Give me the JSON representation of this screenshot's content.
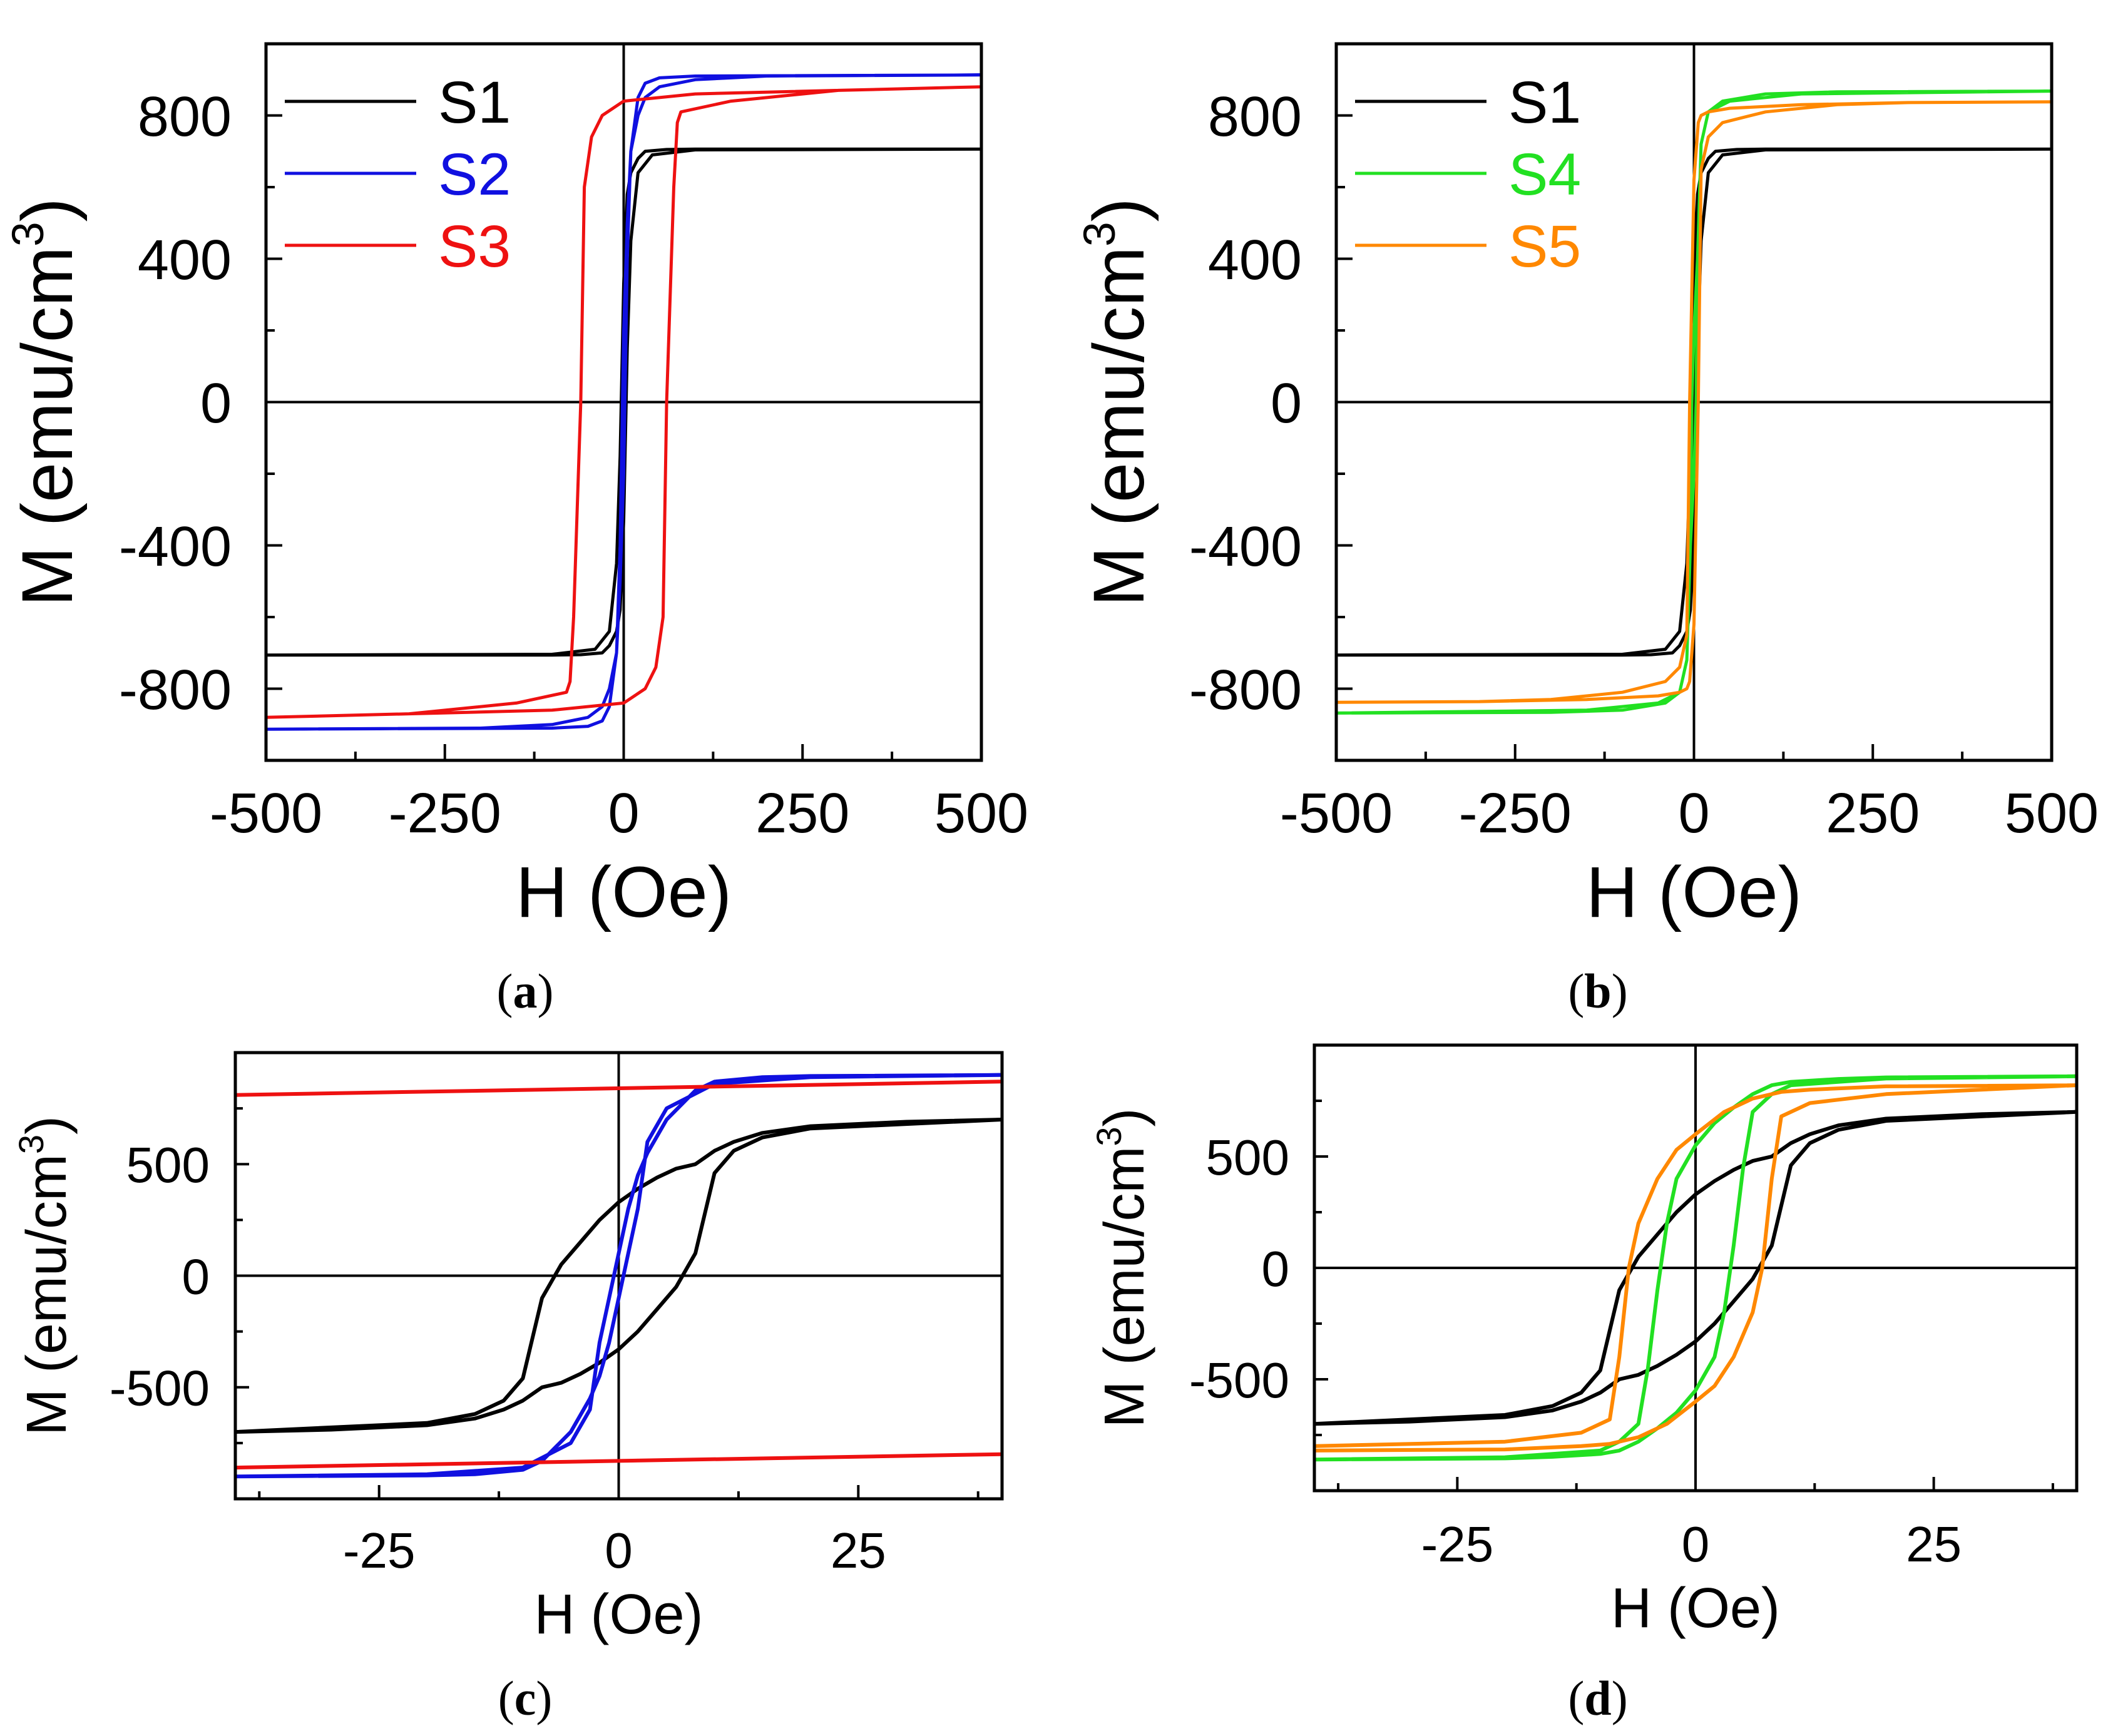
{
  "chart_data": [
    {
      "panel": "a",
      "type": "line",
      "caption": "(a)",
      "xlabel": "H (Oe)",
      "ylabel": "M (emu/cm",
      "ylabel_sup": "3",
      "ylabel_close": ")",
      "xlim": [
        -500,
        500
      ],
      "ylim": [
        -1000,
        1000
      ],
      "xticks": [
        -500,
        -250,
        0,
        250,
        500
      ],
      "xtick_labels": [
        "-500",
        "-250",
        "0",
        "250",
        "500"
      ],
      "yticks": [
        -800,
        -400,
        0,
        400,
        800
      ],
      "ytick_labels": [
        "-800",
        "-400",
        "0",
        "400",
        "800"
      ],
      "legend": [
        {
          "name": "S1",
          "color": "#000000"
        },
        {
          "name": "S2",
          "color": "#1010e0"
        },
        {
          "name": "S3",
          "color": "#ee1111"
        }
      ],
      "series": [
        {
          "name": "S1",
          "color": "#000000",
          "x": [
            -500,
            -100,
            -40,
            -20,
            -10,
            -5,
            0,
            5,
            10,
            20,
            30,
            60,
            100,
            500,
            100,
            40,
            20,
            10,
            5,
            0,
            -5,
            -10,
            -20,
            -30,
            -60,
            -100,
            -500
          ],
          "y": [
            -706,
            -704,
            -690,
            -640,
            -450,
            -150,
            330,
            580,
            640,
            680,
            700,
            705,
            706,
            706,
            704,
            690,
            640,
            450,
            150,
            -330,
            -580,
            -640,
            -680,
            -700,
            -705,
            -706,
            -706
          ]
        },
        {
          "name": "S2",
          "color": "#1010e0",
          "x": [
            -500,
            -200,
            -100,
            -50,
            -30,
            -20,
            -10,
            -5,
            0,
            5,
            10,
            20,
            30,
            50,
            100,
            500,
            200,
            100,
            50,
            30,
            20,
            10,
            5,
            0,
            -5,
            -10,
            -20,
            -30,
            -50,
            -100,
            -500
          ],
          "y": [
            -913,
            -910,
            -900,
            -880,
            -850,
            -800,
            -700,
            -500,
            -200,
            400,
            700,
            850,
            890,
            905,
            910,
            913,
            910,
            900,
            880,
            850,
            800,
            700,
            500,
            200,
            -400,
            -700,
            -850,
            -890,
            -905,
            -910,
            -913
          ]
        },
        {
          "name": "S3",
          "color": "#ee1111",
          "x": [
            -500,
            -300,
            -100,
            0,
            30,
            45,
            55,
            60,
            70,
            75,
            80,
            150,
            300,
            500,
            300,
            100,
            0,
            -30,
            -45,
            -55,
            -60,
            -70,
            -75,
            -80,
            -150,
            -300,
            -500
          ],
          "y": [
            -880,
            -870,
            -860,
            -840,
            -800,
            -740,
            -600,
            0,
            600,
            780,
            810,
            840,
            870,
            880,
            870,
            860,
            840,
            800,
            740,
            600,
            0,
            -600,
            -780,
            -810,
            -840,
            -870,
            -880
          ]
        }
      ]
    },
    {
      "panel": "b",
      "type": "line",
      "caption": "(b)",
      "xlabel": "H (Oe)",
      "ylabel": "M (emu/cm",
      "ylabel_sup": "3",
      "ylabel_close": ")",
      "xlim": [
        -500,
        500
      ],
      "ylim": [
        -1000,
        1000
      ],
      "xticks": [
        -500,
        -250,
        0,
        250,
        500
      ],
      "xtick_labels": [
        "-500",
        "-250",
        "0",
        "250",
        "500"
      ],
      "yticks": [
        -800,
        -400,
        0,
        400,
        800
      ],
      "ytick_labels": [
        "-800",
        "-400",
        "0",
        "400",
        "800"
      ],
      "legend": [
        {
          "name": "S1",
          "color": "#000000"
        },
        {
          "name": "S4",
          "color": "#22e022"
        },
        {
          "name": "S5",
          "color": "#ff8800"
        }
      ],
      "series": [
        {
          "name": "S1",
          "color": "#000000",
          "x": [
            -500,
            -100,
            -40,
            -20,
            -10,
            -5,
            0,
            5,
            10,
            20,
            30,
            60,
            100,
            500,
            100,
            40,
            20,
            10,
            5,
            0,
            -5,
            -10,
            -20,
            -30,
            -60,
            -100,
            -500
          ],
          "y": [
            -706,
            -704,
            -690,
            -640,
            -450,
            -150,
            330,
            580,
            640,
            680,
            700,
            705,
            706,
            706,
            704,
            690,
            640,
            450,
            150,
            -330,
            -580,
            -640,
            -680,
            -700,
            -705,
            -706,
            -706
          ]
        },
        {
          "name": "S4",
          "color": "#22e022",
          "x": [
            -500,
            -200,
            -100,
            -40,
            -20,
            -10,
            -5,
            0,
            3,
            5,
            10,
            20,
            50,
            150,
            500,
            200,
            100,
            40,
            20,
            10,
            5,
            0,
            -3,
            -5,
            -10,
            -20,
            -50,
            -150,
            -500
          ],
          "y": [
            -868,
            -866,
            -860,
            -840,
            -810,
            -720,
            -400,
            -200,
            0,
            400,
            720,
            810,
            840,
            860,
            868,
            866,
            860,
            840,
            810,
            720,
            400,
            200,
            0,
            -400,
            -720,
            -810,
            -840,
            -860,
            -868
          ]
        },
        {
          "name": "S5",
          "color": "#ff8800",
          "x": [
            -500,
            -300,
            -200,
            -100,
            -40,
            -20,
            -10,
            -6,
            0,
            6,
            10,
            20,
            50,
            150,
            300,
            500,
            300,
            200,
            100,
            40,
            20,
            10,
            6,
            0,
            -6,
            -10,
            -20,
            -50,
            -150,
            -300,
            -500
          ],
          "y": [
            -838,
            -836,
            -830,
            -810,
            -780,
            -740,
            -650,
            0,
            620,
            780,
            800,
            810,
            820,
            830,
            836,
            838,
            836,
            830,
            810,
            780,
            740,
            650,
            0,
            -620,
            -780,
            -800,
            -810,
            -820,
            -830,
            -836,
            -838
          ]
        }
      ]
    },
    {
      "panel": "c",
      "type": "line",
      "caption": "(c)",
      "xlabel": "H (Oe)",
      "ylabel": "M (emu/cm",
      "ylabel_sup": "3",
      "ylabel_close": ")",
      "xlim": [
        -40,
        40
      ],
      "ylim": [
        -1000,
        1000
      ],
      "xticks": [
        -25,
        0,
        25
      ],
      "xtick_labels": [
        "-25",
        "0",
        "25"
      ],
      "yticks": [
        -500,
        0,
        500
      ],
      "ytick_labels": [
        "-500",
        "0",
        "500"
      ],
      "series": [
        {
          "name": "S1",
          "color": "#000000",
          "x": [
            -40,
            -20,
            -15,
            -12,
            -10,
            -8,
            -6,
            -4,
            -2,
            0,
            2,
            4,
            6,
            8,
            10,
            12,
            15,
            20,
            30,
            40,
            20,
            15,
            12,
            10,
            8,
            6,
            4,
            2,
            0,
            -2,
            -4,
            -6,
            -8,
            -10,
            -12,
            -15,
            -20,
            -30,
            -40
          ],
          "y": [
            -700,
            -660,
            -620,
            -560,
            -460,
            -100,
            50,
            150,
            250,
            330,
            390,
            440,
            480,
            500,
            560,
            600,
            640,
            670,
            690,
            700,
            660,
            620,
            560,
            460,
            100,
            -50,
            -150,
            -250,
            -330,
            -390,
            -440,
            -480,
            -500,
            -560,
            -600,
            -640,
            -670,
            -690,
            -700
          ]
        },
        {
          "name": "S2",
          "color": "#1010e0",
          "x": [
            -40,
            -20,
            -10,
            -5,
            -3,
            -2,
            -1,
            0,
            1,
            2,
            3,
            5,
            8,
            10,
            15,
            20,
            40,
            20,
            10,
            5,
            3,
            2,
            1,
            0,
            -1,
            -2,
            -3,
            -5,
            -8,
            -10,
            -15,
            -20,
            -40
          ],
          "y": [
            -900,
            -890,
            -860,
            -750,
            -600,
            -300,
            -100,
            100,
            300,
            450,
            550,
            700,
            830,
            870,
            890,
            895,
            900,
            890,
            860,
            750,
            600,
            300,
            100,
            -100,
            -300,
            -450,
            -550,
            -700,
            -830,
            -870,
            -890,
            -895,
            -900
          ]
        },
        {
          "name": "S3",
          "color": "#ee1111",
          "x": [
            -40,
            40
          ],
          "y": [
            810,
            870
          ]
        },
        {
          "name": "S3",
          "color": "#ee1111",
          "x": [
            -40,
            40
          ],
          "y": [
            -860,
            -800
          ]
        }
      ]
    },
    {
      "panel": "d",
      "type": "line",
      "caption": "(d)",
      "xlabel": "H (Oe)",
      "ylabel": "M (emu/cm",
      "ylabel_sup": "3",
      "ylabel_close": ")",
      "xlim": [
        -40,
        40
      ],
      "ylim": [
        -1000,
        1000
      ],
      "xticks": [
        -25,
        0,
        25
      ],
      "xtick_labels": [
        "-25",
        "0",
        "25"
      ],
      "yticks": [
        -500,
        0,
        500
      ],
      "ytick_labels": [
        "-500",
        "0",
        "500"
      ],
      "series": [
        {
          "name": "S1",
          "color": "#000000",
          "x": [
            -40,
            -20,
            -15,
            -12,
            -10,
            -8,
            -6,
            -4,
            -2,
            0,
            2,
            4,
            6,
            8,
            10,
            12,
            15,
            20,
            30,
            40,
            20,
            15,
            12,
            10,
            8,
            6,
            4,
            2,
            0,
            -2,
            -4,
            -6,
            -8,
            -10,
            -12,
            -15,
            -20,
            -30,
            -40
          ],
          "y": [
            -700,
            -660,
            -620,
            -560,
            -460,
            -100,
            50,
            150,
            250,
            330,
            390,
            440,
            480,
            500,
            560,
            600,
            640,
            670,
            690,
            700,
            660,
            620,
            560,
            460,
            100,
            -50,
            -150,
            -250,
            -330,
            -390,
            -440,
            -480,
            -500,
            -560,
            -600,
            -640,
            -670,
            -690,
            -700
          ]
        },
        {
          "name": "S4",
          "color": "#22e022",
          "x": [
            -40,
            -20,
            -10,
            -8,
            -6,
            -5,
            -4,
            -3,
            -2,
            0,
            2,
            4,
            6,
            8,
            10,
            15,
            20,
            40,
            20,
            10,
            8,
            6,
            5,
            4,
            3,
            2,
            0,
            -2,
            -4,
            -6,
            -8,
            -10,
            -15,
            -20,
            -40
          ],
          "y": [
            -860,
            -850,
            -820,
            -780,
            -700,
            -450,
            -100,
            200,
            400,
            550,
            650,
            720,
            780,
            820,
            835,
            848,
            855,
            860,
            850,
            820,
            780,
            700,
            450,
            100,
            -200,
            -400,
            -550,
            -650,
            -720,
            -780,
            -820,
            -835,
            -848,
            -855,
            -860
          ]
        },
        {
          "name": "S5",
          "color": "#ff8800",
          "x": [
            -40,
            -20,
            -12,
            -9,
            -8,
            -7,
            -6,
            -4,
            -2,
            0,
            3,
            6,
            9,
            12,
            20,
            40,
            20,
            12,
            9,
            8,
            7,
            6,
            4,
            2,
            0,
            -3,
            -6,
            -9,
            -12,
            -20,
            -40
          ],
          "y": [
            -800,
            -780,
            -740,
            -680,
            -400,
            0,
            200,
            400,
            530,
            600,
            700,
            760,
            790,
            800,
            815,
            820,
            780,
            740,
            680,
            400,
            0,
            -200,
            -400,
            -530,
            -600,
            -700,
            -760,
            -790,
            -800,
            -815,
            -820
          ]
        }
      ]
    }
  ]
}
